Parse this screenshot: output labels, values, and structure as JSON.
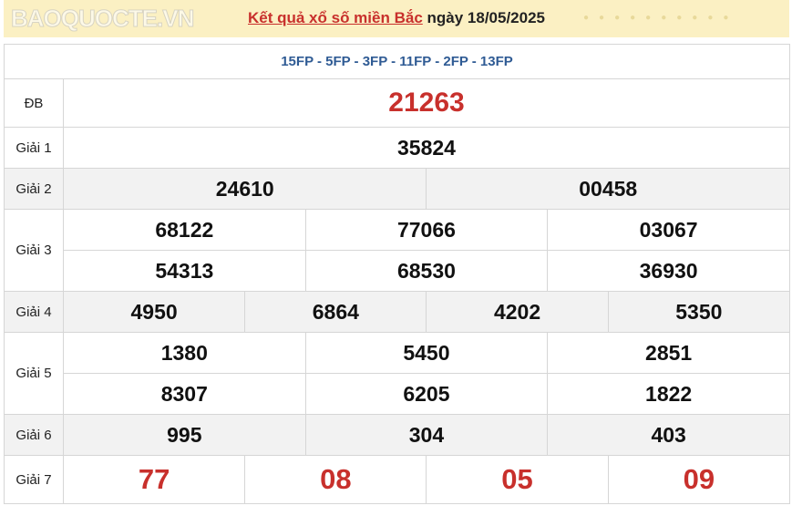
{
  "header": {
    "title_link": "Kết quả xổ số miền Bắc",
    "date_text": "ngày 18/05/2025"
  },
  "codes": "15FP - 5FP - 3FP - 11FP - 2FP - 13FP",
  "prizes": {
    "db": {
      "label": "ĐB",
      "numbers": [
        "21263"
      ]
    },
    "g1": {
      "label": "Giải 1",
      "numbers": [
        "35824"
      ]
    },
    "g2": {
      "label": "Giải 2",
      "numbers": [
        "24610",
        "00458"
      ]
    },
    "g3": {
      "label": "Giải 3",
      "numbers": [
        "68122",
        "77066",
        "03067",
        "54313",
        "68530",
        "36930"
      ]
    },
    "g4": {
      "label": "Giải 4",
      "numbers": [
        "4950",
        "6864",
        "4202",
        "5350"
      ]
    },
    "g5": {
      "label": "Giải 5",
      "numbers": [
        "1380",
        "5450",
        "2851",
        "8307",
        "6205",
        "1822"
      ]
    },
    "g6": {
      "label": "Giải 6",
      "numbers": [
        "995",
        "304",
        "403"
      ]
    },
    "g7": {
      "label": "Giải 7",
      "numbers": [
        "77",
        "08",
        "05",
        "09"
      ]
    }
  },
  "watermark": "BAOQUOCTE.VN",
  "colors": {
    "accent_red": "#c8302c",
    "code_blue": "#2f5b94",
    "header_bg": "#fbf0c3"
  }
}
